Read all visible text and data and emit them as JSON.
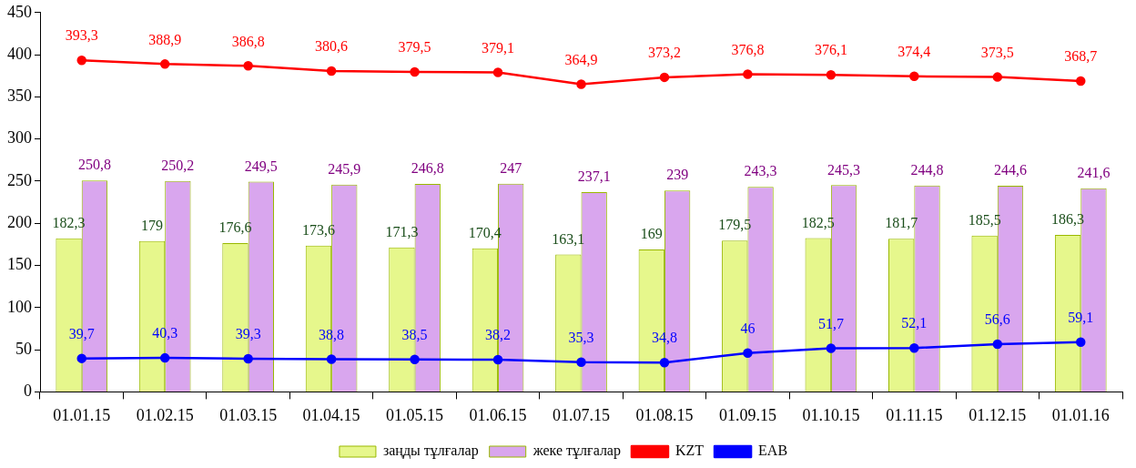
{
  "chart_data": {
    "type": "bar",
    "categories": [
      "01.01.15",
      "01.02.15",
      "01.03.15",
      "01.04.15",
      "01.05.15",
      "01.06.15",
      "01.07.15",
      "01.08.15",
      "01.09.15",
      "01.10.15",
      "01.11.15",
      "01.12.15",
      "01.01.16"
    ],
    "series": [
      {
        "name": "заңды тұлғалар",
        "color": "#e6f78c",
        "values": [
          182.3,
          179,
          176.6,
          173.6,
          171.3,
          170.4,
          163.1,
          169,
          179.5,
          182.5,
          181.7,
          185.5,
          186.3
        ],
        "value_labels": [
          "182,3",
          "179",
          "176,6",
          "173,6",
          "171,3",
          "170,4",
          "163,1",
          "169",
          "179,5",
          "182,5",
          "181,7",
          "185,5",
          "186,3"
        ]
      },
      {
        "name": "жеке тұлғалар",
        "color": "#d9a6ee",
        "values": [
          250.8,
          250.2,
          249.5,
          245.9,
          246.8,
          247,
          237.1,
          239,
          243.3,
          245.3,
          244.8,
          244.6,
          241.6
        ],
        "value_labels": [
          "250,8",
          "250,2",
          "249,5",
          "245,9",
          "246,8",
          "247",
          "237,1",
          "239",
          "243,3",
          "245,3",
          "244,8",
          "244,6",
          "241,6"
        ]
      },
      {
        "name": "KZT",
        "type": "line",
        "color": "#ff0000",
        "values": [
          393.3,
          388.9,
          386.8,
          380.6,
          379.5,
          379.1,
          364.9,
          373.2,
          376.8,
          376.1,
          374.4,
          373.5,
          368.7
        ],
        "value_labels": [
          "393,3",
          "388,9",
          "386,8",
          "380,6",
          "379,5",
          "379,1",
          "364,9",
          "373,2",
          "376,8",
          "376,1",
          "374,4",
          "373,5",
          "368,7"
        ]
      },
      {
        "name": "ЕАВ",
        "type": "line",
        "color": "#0000ff",
        "values": [
          39.7,
          40.3,
          39.3,
          38.8,
          38.5,
          38.2,
          35.3,
          34.8,
          46,
          51.7,
          52.1,
          56.6,
          59.1
        ],
        "value_labels": [
          "39,7",
          "40,3",
          "39,3",
          "38,8",
          "38,5",
          "38,2",
          "35,3",
          "34,8",
          "46",
          "51,7",
          "52,1",
          "56,6",
          "59,1"
        ]
      }
    ],
    "ylim": [
      0,
      450
    ],
    "yticks": [
      0,
      50,
      100,
      150,
      200,
      250,
      300,
      350,
      400,
      450
    ],
    "grid": false,
    "legend": "bottom",
    "marker": "circle",
    "line_style": "solid"
  }
}
